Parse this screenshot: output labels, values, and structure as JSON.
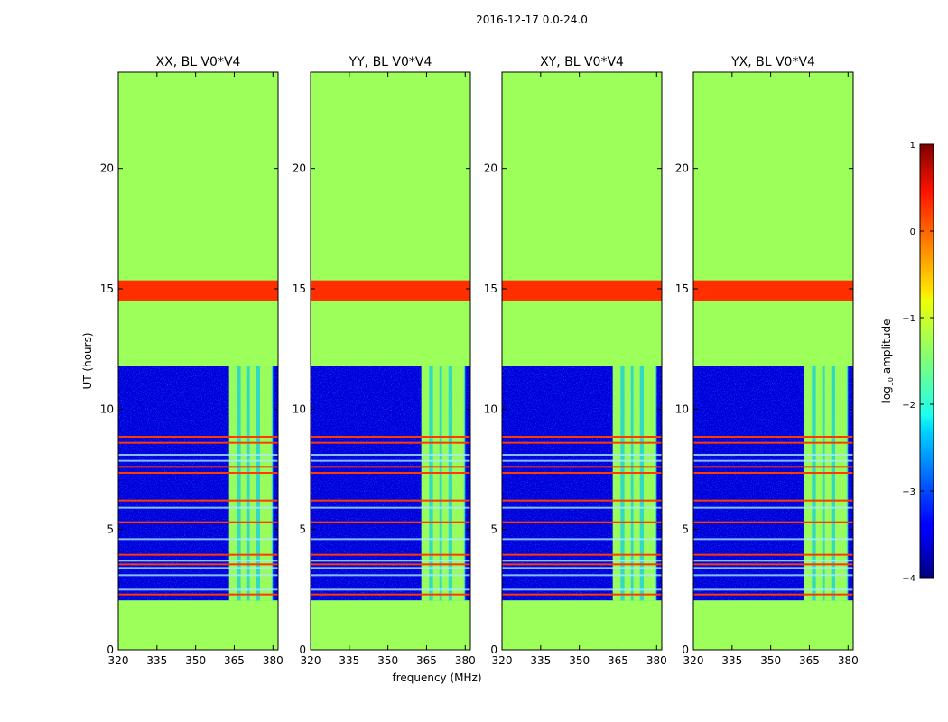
{
  "chart_data": {
    "type": "heatmap",
    "suptitle": "2016-12-17 0.0-24.0",
    "xlabel": "frequency (MHz)",
    "ylabel": "UT (hours)",
    "xlim": [
      320,
      382
    ],
    "ylim": [
      0,
      24
    ],
    "xticks": [
      320,
      335,
      350,
      365,
      380
    ],
    "yticks": [
      0,
      5,
      10,
      15,
      20
    ],
    "panels": [
      {
        "title": "XX, BL V0*V4"
      },
      {
        "title": "YY, BL V0*V4"
      },
      {
        "title": "XY, BL V0*V4"
      },
      {
        "title": "YX, BL V0*V4"
      }
    ],
    "colorbar": {
      "label": "log10 amplitude",
      "label_base": "log",
      "label_sub": "10",
      "label_rest": " amplitude",
      "range": [
        -4,
        1
      ],
      "ticks": [
        {
          "value": 1,
          "label": "1"
        },
        {
          "value": 0,
          "label": "0"
        },
        {
          "value": -1,
          "label": "−1"
        },
        {
          "value": -2,
          "label": "−2"
        },
        {
          "value": -3,
          "label": "−3"
        },
        {
          "value": -4,
          "label": "−4"
        }
      ]
    },
    "regions": [
      {
        "name": "no-data-high",
        "t_start": 11.8,
        "t_end": 24.0,
        "log_amplitude": -1.3
      },
      {
        "name": "flagged-band",
        "t_start": 14.5,
        "t_end": 15.35,
        "log_amplitude": 0.3
      },
      {
        "name": "noise-observation",
        "t_start": 2.05,
        "t_end": 11.8,
        "log_amplitude": -3.6
      },
      {
        "name": "no-data-low",
        "t_start": 0.0,
        "t_end": 2.05,
        "log_amplitude": -1.3
      }
    ],
    "rfi_band_mhz": [
      363,
      380
    ],
    "rfi_sub_bands_mhz": [
      [
        363,
        366
      ],
      [
        367.5,
        370
      ],
      [
        371,
        373.5
      ],
      [
        375,
        379.5
      ]
    ],
    "red_lines_hours": [
      8.85,
      8.6,
      7.6,
      7.35,
      6.2,
      5.3,
      3.95,
      3.55,
      2.3
    ],
    "light_lines_hours": [
      8.1,
      7.85,
      5.9,
      4.6,
      3.7,
      3.4,
      3.1,
      2.5
    ]
  }
}
